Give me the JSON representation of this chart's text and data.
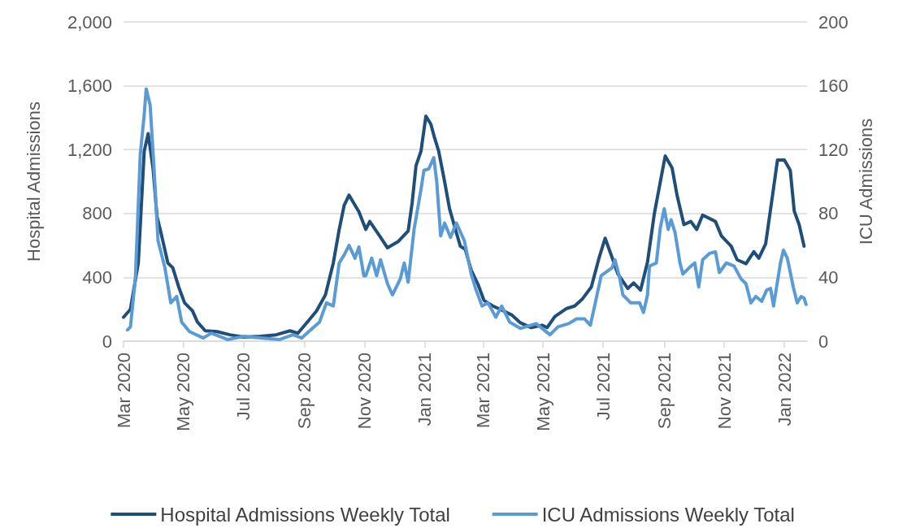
{
  "chart_data": {
    "type": "line",
    "ylabel": "Hospital Admissions",
    "y2label": "ICU Admissions",
    "xlim": [
      "2020-03-01",
      "2022-01-24"
    ],
    "xticks": [
      {
        "value": "2020-03-01",
        "label": "Mar 2020"
      },
      {
        "value": "2020-05-01",
        "label": "May 2020"
      },
      {
        "value": "2020-07-01",
        "label": "Jul 2020"
      },
      {
        "value": "2020-09-01",
        "label": "Sep 2020"
      },
      {
        "value": "2020-11-01",
        "label": "Nov 2020"
      },
      {
        "value": "2021-01-01",
        "label": "Jan 2021"
      },
      {
        "value": "2021-03-01",
        "label": "Mar 2021"
      },
      {
        "value": "2021-05-01",
        "label": "May 2021"
      },
      {
        "value": "2021-07-01",
        "label": "Jul 2021"
      },
      {
        "value": "2021-09-01",
        "label": "Sep 2021"
      },
      {
        "value": "2021-11-01",
        "label": "Nov 2021"
      },
      {
        "value": "2022-01-01",
        "label": "Jan 2022"
      }
    ],
    "ylim": [
      0,
      2000
    ],
    "yticks": [
      {
        "value": 0,
        "label": "0"
      },
      {
        "value": 400,
        "label": "400"
      },
      {
        "value": 800,
        "label": "800"
      },
      {
        "value": 1200,
        "label": "1,200"
      },
      {
        "value": 1600,
        "label": "1,600"
      },
      {
        "value": 2000,
        "label": "2,000"
      }
    ],
    "y2lim": [
      0,
      200
    ],
    "y2ticks": [
      0,
      40,
      80,
      120,
      160,
      200
    ],
    "grid": "y",
    "legend": "bottom",
    "marker": "none",
    "line_style": "solid",
    "series": [
      {
        "name": "Hospital Admissions Weekly Total",
        "color": "#1f4e79",
        "x": [
          "2020-03-01",
          "2020-03-08",
          "2020-03-16",
          "2020-03-22",
          "2020-03-26",
          "2020-03-31",
          "2020-04-04",
          "2020-04-08",
          "2020-04-15",
          "2020-04-20",
          "2020-04-26",
          "2020-05-02",
          "2020-05-10",
          "2020-05-15",
          "2020-05-23",
          "2020-06-04",
          "2020-06-17",
          "2020-07-01",
          "2020-07-18",
          "2020-08-03",
          "2020-08-17",
          "2020-08-25",
          "2020-09-05",
          "2020-09-13",
          "2020-09-22",
          "2020-09-30",
          "2020-10-06",
          "2020-10-11",
          "2020-10-16",
          "2020-10-26",
          "2020-11-02",
          "2020-11-06",
          "2020-11-16",
          "2020-11-24",
          "2020-12-05",
          "2020-12-15",
          "2020-12-19",
          "2020-12-23",
          "2020-12-28",
          "2021-01-02",
          "2021-01-07",
          "2021-01-11",
          "2021-01-15",
          "2021-01-21",
          "2021-01-26",
          "2021-02-01",
          "2021-02-06",
          "2021-02-11",
          "2021-02-17",
          "2021-02-24",
          "2021-03-02",
          "2021-03-11",
          "2021-03-20",
          "2021-03-30",
          "2021-04-08",
          "2021-04-19",
          "2021-04-30",
          "2021-05-05",
          "2021-05-13",
          "2021-05-25",
          "2021-06-02",
          "2021-06-10",
          "2021-06-19",
          "2021-06-27",
          "2021-07-03",
          "2021-07-08",
          "2021-07-16",
          "2021-07-26",
          "2021-08-01",
          "2021-08-08",
          "2021-08-15",
          "2021-08-22",
          "2021-08-29",
          "2021-09-02",
          "2021-09-09",
          "2021-09-14",
          "2021-09-21",
          "2021-09-28",
          "2021-10-04",
          "2021-10-10",
          "2021-10-23",
          "2021-10-29",
          "2021-11-08",
          "2021-11-14",
          "2021-11-23",
          "2021-12-01",
          "2021-12-06",
          "2021-12-13",
          "2021-12-20",
          "2021-12-25",
          "2022-01-01",
          "2022-01-07",
          "2022-01-11",
          "2022-01-16",
          "2022-01-21"
        ],
        "values": [
          150,
          200,
          490,
          1190,
          1300,
          1080,
          780,
          680,
          490,
          460,
          340,
          240,
          190,
          120,
          65,
          60,
          40,
          25,
          30,
          40,
          65,
          50,
          130,
          190,
          290,
          490,
          700,
          850,
          915,
          810,
          700,
          750,
          660,
          585,
          625,
          690,
          865,
          1100,
          1190,
          1410,
          1360,
          1270,
          1190,
          1000,
          830,
          700,
          595,
          575,
          445,
          355,
          255,
          220,
          195,
          165,
          115,
          85,
          100,
          85,
          155,
          205,
          220,
          265,
          340,
          525,
          645,
          560,
          420,
          330,
          365,
          320,
          495,
          800,
          1030,
          1160,
          1085,
          915,
          730,
          750,
          700,
          790,
          750,
          660,
          595,
          510,
          485,
          560,
          520,
          610,
          915,
          1135,
          1135,
          1070,
          815,
          730,
          595
        ]
      },
      {
        "name": "ICU Admissions Weekly Total",
        "color": "#5b9bd5",
        "axis": "y2",
        "x": [
          "2020-03-05",
          "2020-03-08",
          "2020-03-13",
          "2020-03-18",
          "2020-03-22",
          "2020-03-24",
          "2020-03-28",
          "2020-04-01",
          "2020-04-05",
          "2020-04-12",
          "2020-04-18",
          "2020-04-24",
          "2020-04-29",
          "2020-05-07",
          "2020-05-21",
          "2020-05-29",
          "2020-06-15",
          "2020-07-01",
          "2020-07-18",
          "2020-08-06",
          "2020-08-20",
          "2020-08-29",
          "2020-09-05",
          "2020-09-16",
          "2020-09-23",
          "2020-09-30",
          "2020-10-06",
          "2020-10-11",
          "2020-10-16",
          "2020-10-22",
          "2020-10-26",
          "2020-10-31",
          "2020-11-02",
          "2020-11-08",
          "2020-11-13",
          "2020-11-17",
          "2020-11-24",
          "2020-11-29",
          "2020-12-07",
          "2020-12-11",
          "2020-12-15",
          "2020-12-21",
          "2020-12-28",
          "2020-12-31",
          "2021-01-05",
          "2021-01-10",
          "2021-01-13",
          "2021-01-17",
          "2021-01-21",
          "2021-01-27",
          "2021-02-02",
          "2021-02-10",
          "2021-02-17",
          "2021-02-22",
          "2021-02-28",
          "2021-03-06",
          "2021-03-14",
          "2021-03-20",
          "2021-03-28",
          "2021-04-08",
          "2021-04-24",
          "2021-05-08",
          "2021-05-16",
          "2021-05-27",
          "2021-06-04",
          "2021-06-12",
          "2021-06-18",
          "2021-06-23",
          "2021-06-29",
          "2021-07-10",
          "2021-07-13",
          "2021-07-18",
          "2021-07-21",
          "2021-07-29",
          "2021-08-07",
          "2021-08-11",
          "2021-08-15",
          "2021-08-17",
          "2021-08-24",
          "2021-08-28",
          "2021-09-01",
          "2021-09-05",
          "2021-09-08",
          "2021-09-12",
          "2021-09-17",
          "2021-09-20",
          "2021-09-28",
          "2021-10-02",
          "2021-10-06",
          "2021-10-10",
          "2021-10-17",
          "2021-10-23",
          "2021-10-27",
          "2021-11-03",
          "2021-11-11",
          "2021-11-18",
          "2021-11-23",
          "2021-11-28",
          "2021-12-03",
          "2021-12-09",
          "2021-12-14",
          "2021-12-18",
          "2021-12-21",
          "2021-12-28",
          "2021-12-31",
          "2022-01-04",
          "2022-01-10",
          "2022-01-14",
          "2022-01-18",
          "2022-01-21",
          "2022-01-23"
        ],
        "values": [
          7,
          9,
          39,
          117,
          142,
          158,
          148,
          108,
          63,
          46,
          24,
          28,
          12,
          6,
          2,
          5,
          1,
          3,
          2,
          1,
          4,
          2,
          6,
          12,
          24,
          22,
          49,
          54,
          60,
          52,
          59,
          41,
          41,
          52,
          41,
          51,
          36,
          29,
          39,
          49,
          37,
          70,
          95,
          107,
          108,
          115,
          100,
          66,
          74,
          65,
          74,
          63,
          42,
          32,
          22,
          24,
          15,
          22,
          12,
          8,
          11,
          4,
          9,
          11,
          14,
          14,
          10,
          24,
          41,
          46,
          51,
          39,
          29,
          24,
          24,
          18,
          29,
          47,
          49,
          71,
          83,
          70,
          76,
          68,
          49,
          42,
          47,
          49,
          34,
          51,
          55,
          56,
          43,
          49,
          47,
          39,
          36,
          24,
          28,
          25,
          32,
          33,
          22,
          49,
          57,
          52,
          34,
          24,
          28,
          27,
          23
        ]
      }
    ]
  }
}
